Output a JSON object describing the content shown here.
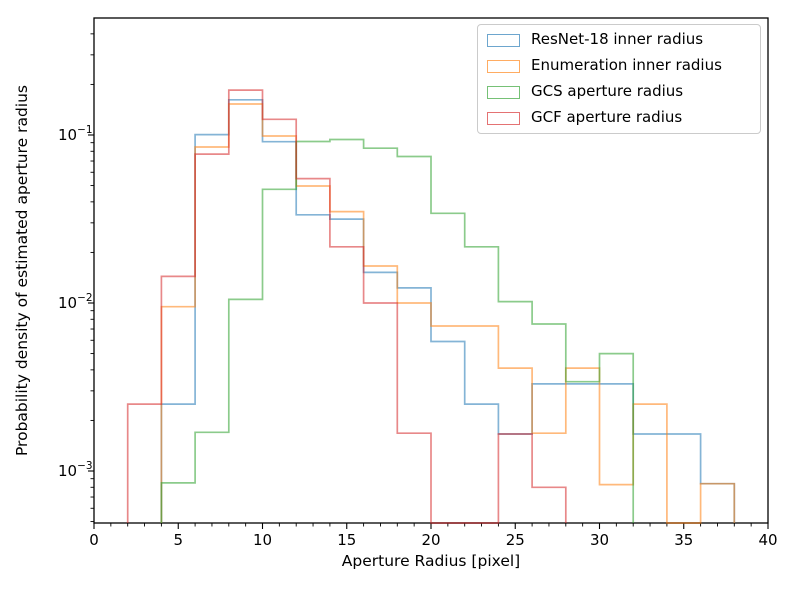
{
  "chart_data": {
    "type": "step-histogram",
    "title": "",
    "xlabel": "Aperture Radius [pixel]",
    "ylabel": "Probability density of estimated aperture radius",
    "x_axis": {
      "min": 0,
      "max": 40,
      "major_ticks": [
        0,
        5,
        10,
        15,
        20,
        25,
        30,
        35,
        40
      ],
      "major_tick_labels": [
        "0",
        "5",
        "10",
        "15",
        "20",
        "25",
        "30",
        "35",
        "40"
      ],
      "minor_tick_step": 1
    },
    "y_axis": {
      "scale": "log",
      "min_log10": -3.3095,
      "max_log10": -0.3036,
      "major_tick_exponents": [
        -1,
        -2,
        -3
      ],
      "major_tick_labels": [
        {
          "mantissa": "10",
          "exponent": "−1"
        },
        {
          "mantissa": "10",
          "exponent": "−2"
        },
        {
          "mantissa": "10",
          "exponent": "−3"
        }
      ]
    },
    "grid": false,
    "legend_position": "upper right",
    "bin_width": 2,
    "series": [
      {
        "name": "ResNet-18 inner radius",
        "color": "#1f77b4",
        "bin_start": 4,
        "values": [
          0.0025,
          0.1005,
          0.162,
          0.0912,
          0.0335,
          0.0316,
          0.0152,
          0.0123,
          0.0059,
          0.0025,
          0.00166,
          0.0033,
          0.0033,
          0.0033,
          0.00166,
          0.00166,
          0.00084
        ]
      },
      {
        "name": "Enumeration inner radius",
        "color": "#ff7f0e",
        "bin_start": 4,
        "values": [
          0.0095,
          0.0848,
          0.153,
          0.0986,
          0.0497,
          0.035,
          0.0166,
          0.01,
          0.0073,
          0.0073,
          0.0041,
          0.00168,
          0.0041,
          0.00083,
          0.0025,
          0,
          0.00084
        ]
      },
      {
        "name": "GCS aperture radius",
        "color": "#2ca02c",
        "bin_start": 4,
        "values": [
          0.00085,
          0.0017,
          0.0105,
          0.0475,
          0.0915,
          0.094,
          0.0835,
          0.0745,
          0.0342,
          0.0216,
          0.0102,
          0.0075,
          0.0034,
          0.005
        ]
      },
      {
        "name": "GCF aperture radius",
        "color": "#d62728",
        "bin_start": 2,
        "values": [
          0.0025,
          0.0144,
          0.077,
          0.185,
          0.124,
          0.055,
          0.0216,
          0.01,
          0.00168,
          0,
          0,
          0.00166,
          0.0008
        ]
      }
    ],
    "line_opacity": 0.55,
    "line_width": 1.7
  }
}
